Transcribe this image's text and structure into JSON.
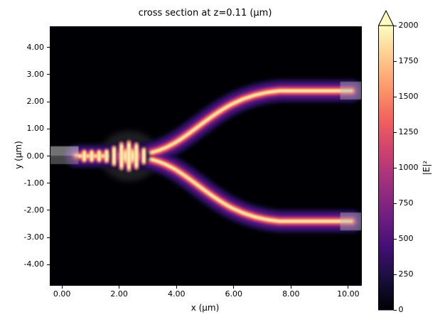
{
  "chart_data": {
    "type": "heatmap",
    "title": "cross section at z=0.11 (μm)",
    "xlabel": "x (μm)",
    "ylabel": "y (μm)",
    "xlim": [
      -0.4,
      10.45
    ],
    "ylim": [
      -4.75,
      4.75
    ],
    "grid": false,
    "x_ticks": [
      {
        "v": 0,
        "label": "0.00"
      },
      {
        "v": 2,
        "label": "2.00"
      },
      {
        "v": 4,
        "label": "4.00"
      },
      {
        "v": 6,
        "label": "6.00"
      },
      {
        "v": 8,
        "label": "8.00"
      },
      {
        "v": 10,
        "label": "10.00"
      }
    ],
    "y_ticks": [
      {
        "v": 4,
        "label": "4.00"
      },
      {
        "v": 3,
        "label": "3.00"
      },
      {
        "v": 2,
        "label": "2.00"
      },
      {
        "v": 1,
        "label": "1.00"
      },
      {
        "v": 0,
        "label": "0.00"
      },
      {
        "v": -1,
        "label": "-1.00"
      },
      {
        "v": -2,
        "label": "-2.00"
      },
      {
        "v": -3,
        "label": "-3.00"
      },
      {
        "v": -4,
        "label": "-4.00"
      }
    ],
    "colormap": {
      "name": "magma",
      "stops": [
        "#000004",
        "#180f3d",
        "#440f76",
        "#721f81",
        "#9e2f7f",
        "#cd4071",
        "#f1605d",
        "#fd9668",
        "#feca8d",
        "#fcfdbf"
      ]
    },
    "colorbar": {
      "label": "|E|²",
      "vmin": 0,
      "vmax": 2000,
      "extend": "max",
      "ticks": [
        {
          "v": 0,
          "label": "0"
        },
        {
          "v": 250,
          "label": "250"
        },
        {
          "v": 500,
          "label": "500"
        },
        {
          "v": 750,
          "label": "750"
        },
        {
          "v": 1000,
          "label": "1000"
        },
        {
          "v": 1250,
          "label": "1250"
        },
        {
          "v": 1500,
          "label": "1500"
        },
        {
          "v": 1750,
          "label": "1750"
        },
        {
          "v": 2000,
          "label": "2000"
        }
      ]
    },
    "field": {
      "description": "|E|^2 of a Y-branch waveguide splitter: bright input guide at y=0 from x~0.55 to x~2.2 with standing-wave fringes, mode-expansion blob centered near x=2.35, split near x=2.9 into two S-bend arms reaching y=+/-2.4 by x~7.9, then straight to the right edge",
      "background_value": 0,
      "peak_value": 2000,
      "input_guide": {
        "x0": 0.5,
        "x1": 2.2,
        "y": 0
      },
      "blob": {
        "cx": 2.35,
        "cy": 0,
        "rx": 0.72,
        "ry": 0.58
      },
      "fringes": {
        "x_start": 0.78,
        "spacing": 0.26,
        "heights": [
          0.16,
          0.16,
          0.16,
          0.18,
          0.3,
          0.44,
          0.5,
          0.42,
          0.24
        ]
      },
      "arms": [
        {
          "start": [
            2.9,
            0.08
          ],
          "c1": [
            4.6,
            0.35
          ],
          "c2": [
            5.2,
            2.2
          ],
          "bend_end": [
            7.6,
            2.4
          ],
          "end": [
            10.12,
            2.4
          ]
        },
        {
          "start": [
            2.9,
            -0.08
          ],
          "c1": [
            4.6,
            -0.35
          ],
          "c2": [
            5.2,
            -2.2
          ],
          "bend_end": [
            7.6,
            -2.4
          ],
          "end": [
            10.12,
            -2.4
          ]
        }
      ],
      "glow_layers": [
        {
          "width": 0.88,
          "color": "#180f3d"
        },
        {
          "width": 0.7,
          "color": "#2c115f"
        },
        {
          "width": 0.56,
          "color": "#440f76"
        },
        {
          "width": 0.44,
          "color": "#721f81"
        },
        {
          "width": 0.34,
          "color": "#9e2f7f"
        },
        {
          "width": 0.26,
          "color": "#cd4071"
        },
        {
          "width": 0.19,
          "color": "#f1605d"
        },
        {
          "width": 0.135,
          "color": "#fd9668"
        },
        {
          "width": 0.09,
          "color": "#feca8d"
        },
        {
          "width": 0.05,
          "color": "#fcfdbf"
        }
      ]
    },
    "overlays": [
      {
        "name": "junction-structure-halo",
        "type": "ellipse",
        "layer": "under",
        "cx": 2.35,
        "cy": 0,
        "rx": 1.02,
        "ry": 0.92,
        "color": "rgba(175,175,175,0.18)"
      },
      {
        "name": "input-structure-halo",
        "type": "rect",
        "layer": "under",
        "x0": 0.5,
        "x1": 2.05,
        "y0": -0.34,
        "y1": 0.34,
        "color": "rgba(175,175,175,0.10)"
      },
      {
        "name": "input-port-upper",
        "type": "rect",
        "layer": "over",
        "x0": -0.4,
        "x1": 0.58,
        "y0": 0.0,
        "y1": 0.36,
        "color": "rgba(205,205,205,0.55)"
      },
      {
        "name": "input-port-lower",
        "type": "rect",
        "layer": "over",
        "x0": -0.4,
        "x1": 0.58,
        "y0": -0.3,
        "y1": 0.0,
        "color": "rgba(140,140,140,0.50)"
      },
      {
        "name": "output-port-top",
        "type": "rect",
        "layer": "over",
        "x0": 9.72,
        "x1": 10.45,
        "y0": 2.08,
        "y1": 2.74,
        "color": "rgba(185,185,185,0.45)"
      },
      {
        "name": "output-port-bottom",
        "type": "rect",
        "layer": "over",
        "x0": 9.72,
        "x1": 10.45,
        "y0": -2.74,
        "y1": -2.08,
        "color": "rgba(185,185,185,0.45)"
      }
    ]
  }
}
